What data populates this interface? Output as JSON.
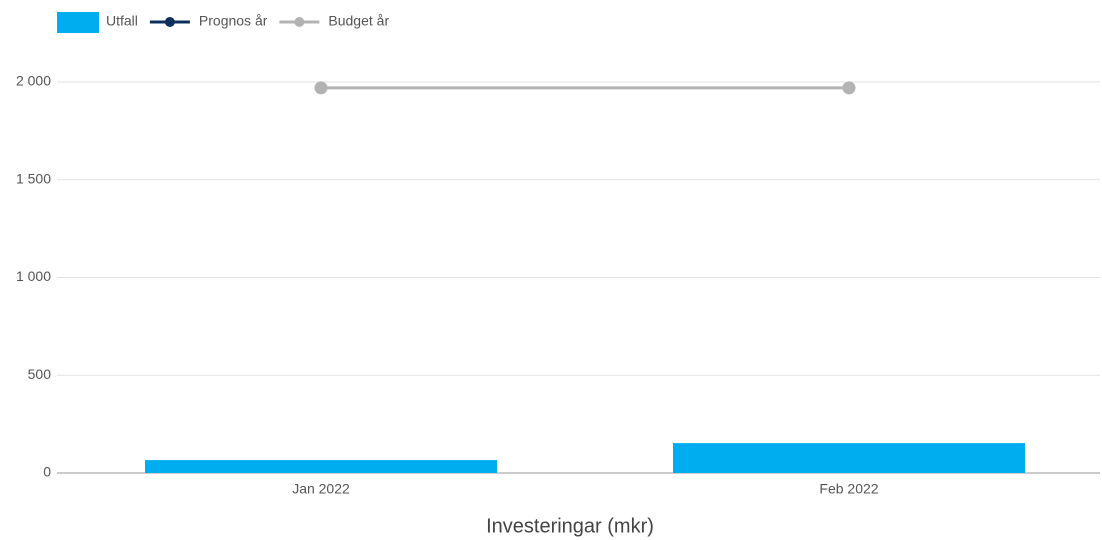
{
  "chart_data": {
    "type": "bar",
    "categories": [
      "Jan 2022",
      "Feb 2022"
    ],
    "series": [
      {
        "name": "Utfall",
        "type": "bar",
        "color": "#00adef",
        "values": [
          66,
          153
        ]
      },
      {
        "name": "Prognos år",
        "type": "line",
        "color": "#0d2f5e",
        "values": [
          null,
          null
        ]
      },
      {
        "name": "Budget år",
        "type": "line",
        "color": "#b3b3b3",
        "values": [
          1970,
          1970
        ]
      }
    ],
    "xlabel": "Investeringar (mkr)",
    "ylim": [
      0,
      2000
    ],
    "yticks": [
      0,
      500,
      {
        "value": 1000,
        "label": "1 000"
      },
      {
        "value": 1500,
        "label": "1 500"
      },
      {
        "value": 2000,
        "label": "2 000"
      }
    ],
    "grid": true,
    "legend": "top-left"
  }
}
